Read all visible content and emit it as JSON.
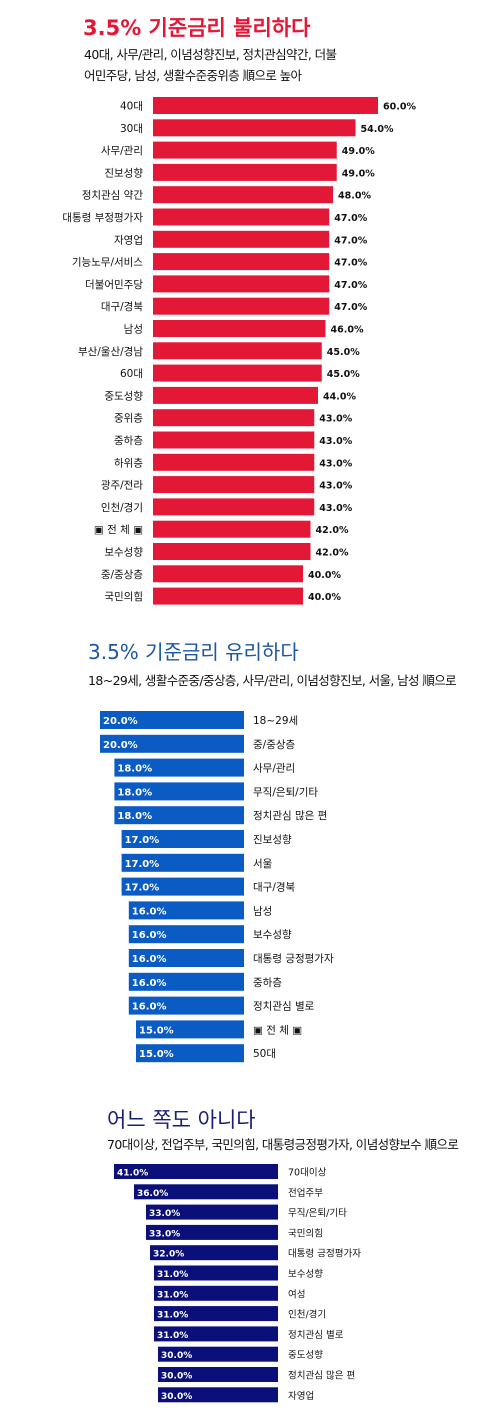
{
  "colors": {
    "red": "#e31837",
    "blue": "#0a5bc4",
    "navy": "#0b0f7a",
    "title_blue": "#1e56a0",
    "title_navy": "#1a2070"
  },
  "sections": [
    {
      "title": "3.5% 기준금리 불리하다",
      "subtitle_lines": [
        "40대, 사무/관리, 이념성향진보, 정치관심약간, 더불",
        "어민주당, 남성, 생활수준중위층 順으로 높아"
      ]
    },
    {
      "title": "3.5% 기준금리 유리하다",
      "subtitle_lines": [
        "18~29세, 생활수준중/중상층, 사무/관리, 이념성향진보, 서울, 남성 順으로"
      ]
    },
    {
      "title": "어느 쪽도 아니다",
      "subtitle_lines": [
        "70대이상, 전업주부, 국민의힘, 대통령긍정평가자, 이념성향보수 順으로"
      ]
    }
  ],
  "chart_data": [
    {
      "type": "bar",
      "title": "3.5% 기준금리 불리하다",
      "categories": [
        "40대",
        "30대",
        "사무/관리",
        "진보성향",
        "정치관심 약간",
        "대통령 부정평가자",
        "자영업",
        "기능노무/서비스",
        "더불어민주당",
        "대구/경북",
        "남성",
        "부산/울산/경남",
        "60대",
        "중도성향",
        "중위층",
        "중하층",
        "하위층",
        "광주/전라",
        "인천/경기",
        "▣ 전 체 ▣",
        "보수성향",
        "중/중상층",
        "국민의힘"
      ],
      "values": [
        60,
        54,
        49,
        49,
        48,
        47,
        47,
        47,
        47,
        47,
        46,
        45,
        45,
        44,
        43,
        43,
        43,
        43,
        43,
        42,
        42,
        40,
        40
      ],
      "value_labels": [
        "60.0%",
        "54.0%",
        "49.0%",
        "49.0%",
        "48.0%",
        "47.0%",
        "47.0%",
        "47.0%",
        "47.0%",
        "47.0%",
        "46.0%",
        "45.0%",
        "45.0%",
        "44.0%",
        "43.0%",
        "43.0%",
        "43.0%",
        "43.0%",
        "43.0%",
        "42.0%",
        "42.0%",
        "40.0%",
        "40.0%"
      ],
      "color": "#e31837"
    },
    {
      "type": "bar",
      "title": "3.5% 기준금리 유리하다",
      "categories": [
        "18~29세",
        "중/중상층",
        "사무/관리",
        "무직/은퇴/기타",
        "정치관심 많은 편",
        "진보성향",
        "서울",
        "대구/경북",
        "남성",
        "보수성향",
        "대통령 긍정평가자",
        "중하층",
        "정치관심 별로",
        "▣ 전 체 ▣",
        "50대"
      ],
      "values": [
        20,
        20,
        18,
        18,
        18,
        17,
        17,
        17,
        16,
        16,
        16,
        16,
        16,
        15,
        15
      ],
      "value_labels": [
        "20.0%",
        "20.0%",
        "18.0%",
        "18.0%",
        "18.0%",
        "17.0%",
        "17.0%",
        "17.0%",
        "16.0%",
        "16.0%",
        "16.0%",
        "16.0%",
        "16.0%",
        "15.0%",
        "15.0%"
      ],
      "color": "#0a5bc4"
    },
    {
      "type": "bar",
      "title": "어느 쪽도 아니다",
      "categories": [
        "70대이상",
        "전업주부",
        "무직/은퇴/기타",
        "국민의힘",
        "대통령 긍정평가자",
        "보수성향",
        "여성",
        "인천/경기",
        "정치관심 별로",
        "중도성향",
        "정치관심 많은 편",
        "자영업"
      ],
      "values": [
        41,
        36,
        33,
        33,
        32,
        31,
        31,
        31,
        31,
        30,
        30,
        30
      ],
      "value_labels": [
        "41.0%",
        "36.0%",
        "33.0%",
        "33.0%",
        "32.0%",
        "31.0%",
        "31.0%",
        "31.0%",
        "31.0%",
        "30.0%",
        "30.0%",
        "30.0%"
      ],
      "color": "#0b0f7a"
    }
  ]
}
